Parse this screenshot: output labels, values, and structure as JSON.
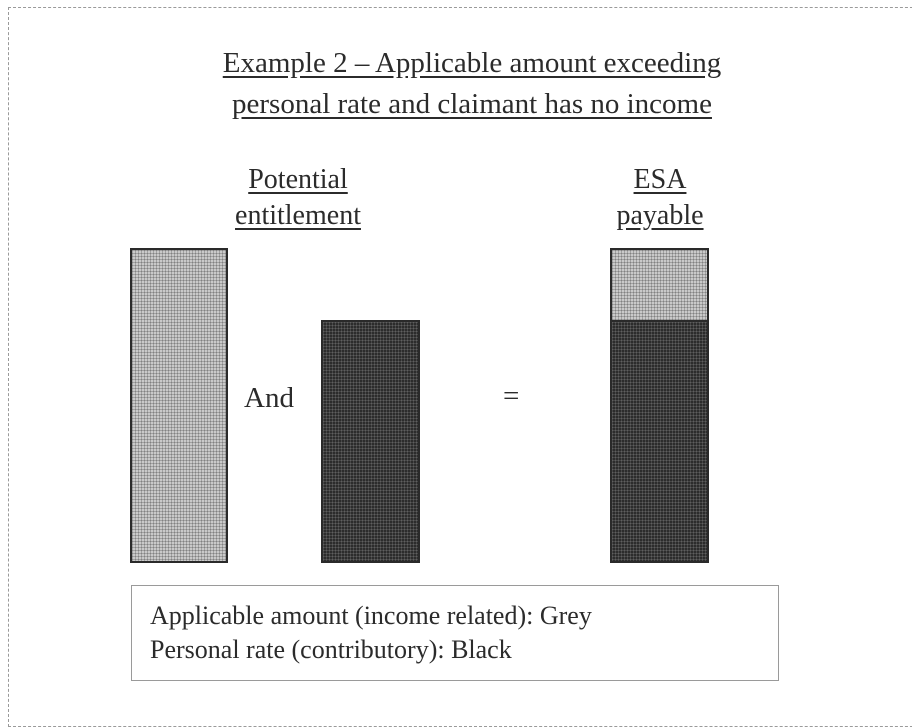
{
  "title": {
    "line1": "Example 2 – Applicable amount exceeding",
    "line2": "personal rate and claimant has no income"
  },
  "headings": {
    "left": [
      "Potential",
      "entitlement"
    ],
    "right": [
      "ESA",
      "payable"
    ]
  },
  "operators": {
    "and": "And",
    "equals": "="
  },
  "bars": {
    "applicable_amount": 1.0,
    "personal_rate": 0.77,
    "esa_payable": {
      "grey": 0.23,
      "black": 0.77
    }
  },
  "legend": {
    "line1": "Applicable amount (income related): Grey",
    "line2": "Personal rate (contributory): Black"
  },
  "colors": {
    "grey": "#c9c9c9",
    "black": "#2c2c2c"
  }
}
